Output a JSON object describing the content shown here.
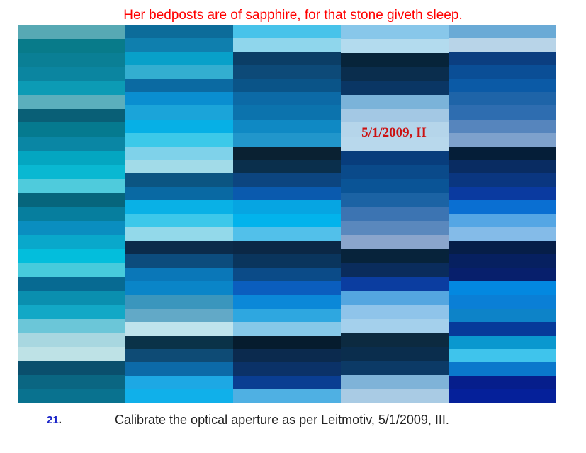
{
  "header": {
    "title": "Her bedposts are of sapphire, for that stone giveth sleep."
  },
  "grid": {
    "stamp": "5/1/2009, II",
    "columns": [
      {
        "cells": [
          "#57a9b4",
          "#087b8a",
          "#0a7f95",
          "#0b85a0",
          "#0c9bb5",
          "#5bafbd",
          "#095f76",
          "#057a8f",
          "#0a86a4",
          "#04a6c1",
          "#09b8d2",
          "#4fcbdc",
          "#06657c",
          "#067e9e",
          "#0a8ec0",
          "#09a8cb",
          "#03bedc",
          "#47cbdc",
          "#076a92",
          "#0a8faf",
          "#12a8c6",
          "#6bc6d8",
          "#a8d7e0",
          "#bee2e6",
          "#0a4f6d",
          "#0a6682",
          "#09728f"
        ]
      },
      {
        "cells": [
          "#0c6c9a",
          "#0f7fae",
          "#08a0c9",
          "#33aed0",
          "#0b6aa2",
          "#0a8ed0",
          "#1ba4d9",
          "#06b0e6",
          "#3cc9e9",
          "#7fd2ea",
          "#a2dbe8",
          "#0b5582",
          "#0969a3",
          "#09b1e6",
          "#3cc8ea",
          "#93d9ea",
          "#0b2b4a",
          "#0c4c7d",
          "#0a77b8",
          "#0a85c8",
          "#3a96bd",
          "#62a9c7",
          "#bfe3ec",
          "#0a3248",
          "#0e4b75",
          "#0c6aa8",
          "#1da8e4",
          "#10b0ea"
        ]
      },
      {
        "cells": [
          "#48c3ea",
          "#8fd6ec",
          "#0b3e66",
          "#0d4a78",
          "#0a5488",
          "#0c6aa6",
          "#0c73ad",
          "#0f89c4",
          "#2196cb",
          "#0a2132",
          "#0a2f4c",
          "#0c4580",
          "#0a5aae",
          "#06a5e2",
          "#02b3ec",
          "#52c0ea",
          "#0b2846",
          "#0a355d",
          "#0b4b88",
          "#0b5ebe",
          "#0b88d8",
          "#2ea7e0",
          "#86c8e8",
          "#061c2e",
          "#0b2a4e",
          "#0b3268",
          "#0a3e92",
          "#4fb0e3"
        ]
      },
      {
        "cells": [
          "#88c7ea",
          "#b3dbee",
          "#07243a",
          "#0a2d4d",
          "#0a3664",
          "#7bb3d9",
          "#a3c8e4",
          "#b5d5ea",
          "#b8d8ec",
          "#083d7c",
          "#0a4a8a",
          "#0a5496",
          "#1b63a4",
          "#3c74b2",
          "#5a88bd",
          "#8aa5cc",
          "#07233b",
          "#0a2c5c",
          "#0b3da0",
          "#54a6e0",
          "#8fc4ea",
          "#a4d0ec",
          "#0c2a40",
          "#0a2d4d",
          "#0c3a66",
          "#7fb3d8",
          "#a9cbe4"
        ]
      },
      {
        "cells": [
          "#6aaad6",
          "#b8d4e8",
          "#0b3e80",
          "#0a4e96",
          "#0b5aa6",
          "#1e64a8",
          "#2e6db0",
          "#5685bd",
          "#7ea1cc",
          "#051e38",
          "#092c62",
          "#0a3680",
          "#0a3aa0",
          "#0a6fd2",
          "#55a6e4",
          "#84bbe8",
          "#061e48",
          "#062060",
          "#071f6c",
          "#0388e0",
          "#0a7fd6",
          "#0d83c8",
          "#063a9a",
          "#0a98cf",
          "#3fc4ec",
          "#0a78cc",
          "#061e8c",
          "#05209a"
        ]
      }
    ]
  },
  "footer": {
    "number": "21",
    "dot": ".",
    "text": "Calibrate the optical aperture as per Leitmotiv, 5/1/2009, III."
  }
}
